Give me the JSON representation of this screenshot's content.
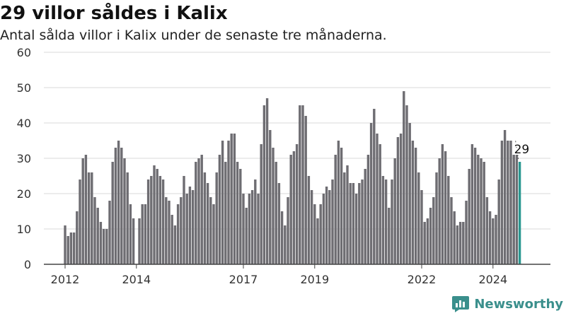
{
  "title": "29 villor såldes i Kalix",
  "subtitle": "Antal sålda villor i Kalix under de senaste tre månaderna.",
  "brand": {
    "name": "Newsworthy"
  },
  "colors": {
    "bar": "#6e6d72",
    "highlight": "#2a9890",
    "grid": "#d9d9d9",
    "axis": "#444444",
    "text": "#333333",
    "brand": "#3a8f8c"
  },
  "chart_data": {
    "type": "bar",
    "title": "29 villor såldes i Kalix",
    "subtitle": "Antal sålda villor i Kalix under de senaste tre månaderna.",
    "xlabel": "",
    "ylabel": "",
    "ylim": [
      0,
      60
    ],
    "yticks": [
      0,
      10,
      20,
      30,
      40,
      50,
      60
    ],
    "grid": true,
    "x_start": "2012-01",
    "xtick_labels": [
      {
        "label": "2012",
        "x": "2012-01"
      },
      {
        "label": "2014",
        "x": "2014-01"
      },
      {
        "label": "2017",
        "x": "2017-01"
      },
      {
        "label": "2019",
        "x": "2019-01"
      },
      {
        "label": "2022",
        "x": "2022-01"
      },
      {
        "label": "2024",
        "x": "2024-01"
      }
    ],
    "annotation": {
      "text": "29",
      "x": "2024-10",
      "value": 29
    },
    "highlight_last": true,
    "values": [
      11,
      8,
      9,
      9,
      15,
      24,
      30,
      31,
      26,
      26,
      19,
      16,
      12,
      10,
      10,
      18,
      29,
      33,
      35,
      33,
      30,
      26,
      17,
      13,
      null,
      13,
      17,
      17,
      24,
      25,
      28,
      27,
      25,
      24,
      19,
      18,
      14,
      11,
      17,
      19,
      25,
      20,
      22,
      21,
      29,
      30,
      31,
      26,
      23,
      19,
      17,
      26,
      31,
      35,
      29,
      35,
      37,
      37,
      29,
      27,
      20,
      16,
      20,
      21,
      24,
      20,
      34,
      45,
      47,
      38,
      33,
      29,
      23,
      15,
      11,
      19,
      31,
      32,
      34,
      45,
      45,
      42,
      25,
      21,
      17,
      13,
      17,
      20,
      22,
      21,
      24,
      31,
      35,
      33,
      26,
      28,
      23,
      23,
      20,
      23,
      24,
      27,
      31,
      40,
      44,
      37,
      34,
      25,
      24,
      16,
      24,
      30,
      36,
      37,
      49,
      45,
      40,
      35,
      33,
      26,
      21,
      12,
      13,
      16,
      19,
      26,
      30,
      34,
      32,
      25,
      19,
      15,
      11,
      12,
      12,
      18,
      27,
      34,
      33,
      31,
      30,
      29,
      19,
      15,
      13,
      14,
      24,
      35,
      38,
      35,
      35,
      31,
      31,
      29
    ]
  }
}
